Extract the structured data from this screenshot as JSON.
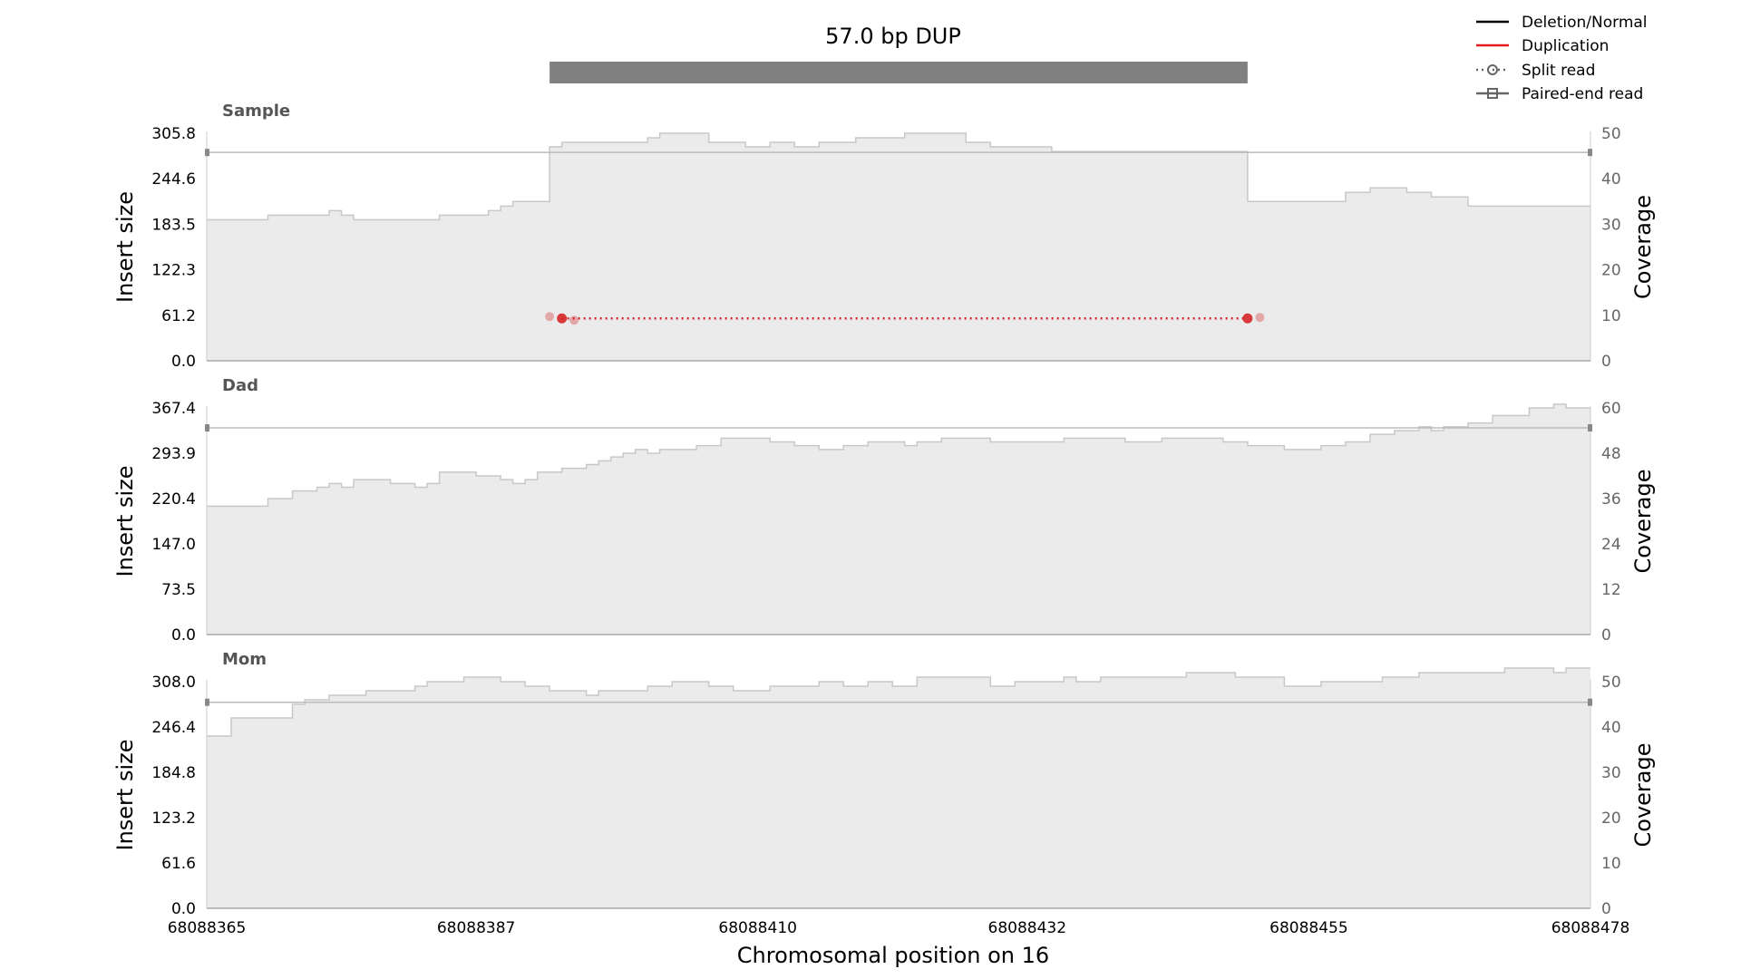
{
  "chart_data": {
    "type": "area",
    "title": "57.0 bp DUP",
    "xlabel": "Chromosomal position on 16",
    "x_ticks": [
      "68088365",
      "68088387",
      "68088410",
      "68088432",
      "68088455",
      "68088478"
    ],
    "x_range": [
      68088365,
      68088478
    ],
    "sv_interval": [
      68088393,
      68088450
    ],
    "left_axis_label": "Insert size",
    "right_axis_label": "Coverage",
    "legend": {
      "placement": "top-right",
      "items": [
        {
          "label": "Deletion/Normal",
          "style": "line",
          "color": "#000000"
        },
        {
          "label": "Duplication",
          "style": "line",
          "color": "#e31a1c"
        },
        {
          "label": "Split read",
          "style": "dotted-circle",
          "color": "#666666"
        },
        {
          "label": "Paired-end read",
          "style": "line-square",
          "color": "#666666"
        }
      ]
    },
    "colors": {
      "coverage_fill": "#ebebeb",
      "coverage_line": "#c8c8c8",
      "split_read": "#d62728",
      "sv_bar": "#808080",
      "axis": "#aaaaaa"
    },
    "panels": [
      {
        "name": "Sample",
        "insert_ticks": [
          "0.0",
          "61.2",
          "122.3",
          "183.5",
          "244.6",
          "305.8"
        ],
        "insert_range": [
          0,
          305.8
        ],
        "coverage_ticks": [
          "0",
          "10",
          "20",
          "30",
          "40",
          "50"
        ],
        "coverage_range": [
          0,
          50
        ],
        "paired_end_y": 280,
        "split_read": {
          "start": 68088394,
          "end": 68088450,
          "y": 57,
          "ends": [
            68088393,
            68088395,
            68088450,
            68088451
          ]
        },
        "coverage": [
          [
            68088365,
            31
          ],
          [
            68088370,
            32
          ],
          [
            68088375,
            33
          ],
          [
            68088376,
            32
          ],
          [
            68088377,
            31
          ],
          [
            68088384,
            32
          ],
          [
            68088388,
            33
          ],
          [
            68088389,
            34
          ],
          [
            68088390,
            35
          ],
          [
            68088393,
            47
          ],
          [
            68088394,
            48
          ],
          [
            68088401,
            49
          ],
          [
            68088402,
            50
          ],
          [
            68088406,
            48
          ],
          [
            68088409,
            47
          ],
          [
            68088411,
            48
          ],
          [
            68088413,
            47
          ],
          [
            68088415,
            48
          ],
          [
            68088418,
            49
          ],
          [
            68088422,
            50
          ],
          [
            68088427,
            48
          ],
          [
            68088429,
            47
          ],
          [
            68088434,
            46
          ],
          [
            68088450,
            35
          ],
          [
            68088458,
            37
          ],
          [
            68088460,
            38
          ],
          [
            68088463,
            37
          ],
          [
            68088465,
            36
          ],
          [
            68088468,
            34
          ],
          [
            68088478,
            34
          ]
        ]
      },
      {
        "name": "Dad",
        "insert_ticks": [
          "0.0",
          "73.5",
          "147.0",
          "220.4",
          "293.9",
          "367.4"
        ],
        "insert_range": [
          0,
          367.4
        ],
        "coverage_ticks": [
          "0",
          "12",
          "24",
          "36",
          "48",
          "60"
        ],
        "coverage_range": [
          0,
          60
        ],
        "paired_end_y": 335,
        "coverage": [
          [
            68088365,
            34
          ],
          [
            68088370,
            36
          ],
          [
            68088372,
            38
          ],
          [
            68088374,
            39
          ],
          [
            68088375,
            40
          ],
          [
            68088376,
            39
          ],
          [
            68088377,
            41
          ],
          [
            68088380,
            40
          ],
          [
            68088382,
            39
          ],
          [
            68088383,
            40
          ],
          [
            68088384,
            43
          ],
          [
            68088387,
            42
          ],
          [
            68088389,
            41
          ],
          [
            68088390,
            40
          ],
          [
            68088391,
            41
          ],
          [
            68088392,
            43
          ],
          [
            68088394,
            44
          ],
          [
            68088396,
            45
          ],
          [
            68088397,
            46
          ],
          [
            68088398,
            47
          ],
          [
            68088399,
            48
          ],
          [
            68088400,
            49
          ],
          [
            68088401,
            48
          ],
          [
            68088402,
            49
          ],
          [
            68088405,
            50
          ],
          [
            68088407,
            52
          ],
          [
            68088411,
            51
          ],
          [
            68088413,
            50
          ],
          [
            68088415,
            49
          ],
          [
            68088417,
            50
          ],
          [
            68088419,
            51
          ],
          [
            68088422,
            50
          ],
          [
            68088423,
            51
          ],
          [
            68088425,
            52
          ],
          [
            68088429,
            51
          ],
          [
            68088435,
            52
          ],
          [
            68088440,
            51
          ],
          [
            68088443,
            52
          ],
          [
            68088448,
            51
          ],
          [
            68088450,
            50
          ],
          [
            68088453,
            49
          ],
          [
            68088456,
            50
          ],
          [
            68088458,
            51
          ],
          [
            68088460,
            53
          ],
          [
            68088462,
            54
          ],
          [
            68088464,
            55
          ],
          [
            68088465,
            54
          ],
          [
            68088466,
            55
          ],
          [
            68088468,
            56
          ],
          [
            68088470,
            58
          ],
          [
            68088473,
            60
          ],
          [
            68088475,
            61
          ],
          [
            68088476,
            60
          ],
          [
            68088478,
            60
          ]
        ]
      },
      {
        "name": "Mom",
        "insert_ticks": [
          "0.0",
          "61.6",
          "123.2",
          "184.8",
          "246.4",
          "308.0"
        ],
        "insert_range": [
          0,
          308.0
        ],
        "coverage_ticks": [
          "0",
          "10",
          "20",
          "30",
          "40",
          "50"
        ],
        "coverage_range": [
          0,
          50
        ],
        "paired_end_y": 280,
        "coverage": [
          [
            68088365,
            38
          ],
          [
            68088367,
            42
          ],
          [
            68088372,
            45
          ],
          [
            68088373,
            46
          ],
          [
            68088375,
            47
          ],
          [
            68088378,
            48
          ],
          [
            68088382,
            49
          ],
          [
            68088383,
            50
          ],
          [
            68088386,
            51
          ],
          [
            68088389,
            50
          ],
          [
            68088391,
            49
          ],
          [
            68088393,
            48
          ],
          [
            68088396,
            47
          ],
          [
            68088397,
            48
          ],
          [
            68088401,
            49
          ],
          [
            68088403,
            50
          ],
          [
            68088406,
            49
          ],
          [
            68088408,
            48
          ],
          [
            68088411,
            49
          ],
          [
            68088415,
            50
          ],
          [
            68088417,
            49
          ],
          [
            68088419,
            50
          ],
          [
            68088421,
            49
          ],
          [
            68088423,
            51
          ],
          [
            68088429,
            49
          ],
          [
            68088431,
            50
          ],
          [
            68088435,
            51
          ],
          [
            68088436,
            50
          ],
          [
            68088438,
            51
          ],
          [
            68088445,
            52
          ],
          [
            68088449,
            51
          ],
          [
            68088453,
            49
          ],
          [
            68088456,
            50
          ],
          [
            68088461,
            51
          ],
          [
            68088464,
            52
          ],
          [
            68088471,
            53
          ],
          [
            68088475,
            52
          ],
          [
            68088476,
            53
          ],
          [
            68088478,
            53
          ]
        ]
      }
    ]
  }
}
